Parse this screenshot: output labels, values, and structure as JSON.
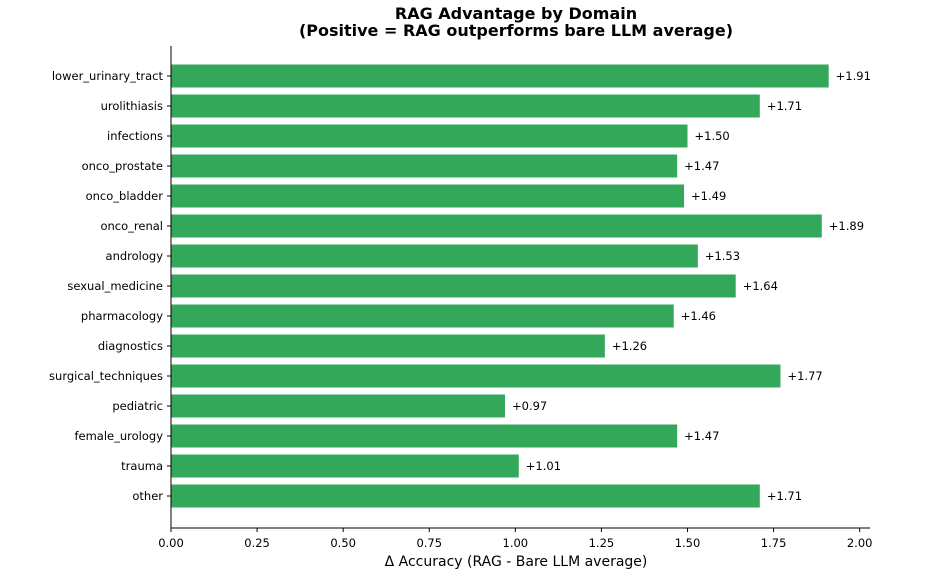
{
  "chart_data": {
    "type": "bar",
    "orientation": "horizontal",
    "title": "RAG Advantage by Domain",
    "subtitle": "(Positive = RAG outperforms bare LLM average)",
    "xlabel": "Δ Accuracy (RAG - Bare LLM average)",
    "ylabel": "",
    "xlim": [
      0,
      2.03
    ],
    "xticks": [
      "0.00",
      "0.25",
      "0.50",
      "0.75",
      "1.00",
      "1.25",
      "1.50",
      "1.75",
      "2.00"
    ],
    "grid": false,
    "bar_color": "#34a85a",
    "categories": [
      "lower_urinary_tract",
      "urolithiasis",
      "infections",
      "onco_prostate",
      "onco_bladder",
      "onco_renal",
      "andrology",
      "sexual_medicine",
      "pharmacology",
      "diagnostics",
      "surgical_techniques",
      "pediatric",
      "female_urology",
      "trauma",
      "other"
    ],
    "values": [
      1.91,
      1.71,
      1.5,
      1.47,
      1.49,
      1.89,
      1.53,
      1.64,
      1.46,
      1.26,
      1.77,
      0.97,
      1.47,
      1.01,
      1.71
    ],
    "data_labels": [
      "+1.91",
      "+1.71",
      "+1.50",
      "+1.47",
      "+1.49",
      "+1.89",
      "+1.53",
      "+1.64",
      "+1.46",
      "+1.26",
      "+1.77",
      "+0.97",
      "+1.47",
      "+1.01",
      "+1.71"
    ]
  }
}
